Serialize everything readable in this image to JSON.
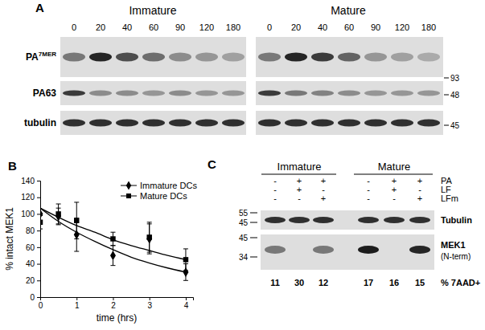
{
  "chart_data": {
    "type": "line",
    "xlabel": "time (hrs)",
    "ylabel": "% intact MEK1",
    "x": [
      0,
      0.5,
      1,
      2,
      3,
      4
    ],
    "xlim": [
      0,
      4.2
    ],
    "xticks": [
      0,
      1,
      2,
      3,
      4
    ],
    "ylim": [
      0,
      140
    ],
    "yticks": [
      0,
      20,
      40,
      60,
      80,
      100,
      120,
      140
    ],
    "legend": "top-right",
    "fit_x": [
      0,
      0.5,
      1,
      1.5,
      2,
      2.5,
      3,
      3.5,
      4
    ],
    "series": [
      {
        "name": "Immature DCs",
        "color": "#000000",
        "marker": "diamond",
        "line_style": "solid",
        "values": [
          100,
          97,
          75,
          50,
          70,
          30
        ],
        "errors": [
          0,
          10,
          20,
          12,
          18,
          10
        ],
        "fit": [
          107,
          91,
          78,
          67,
          57,
          48,
          41,
          35,
          30
        ]
      },
      {
        "name": "Mature DCs",
        "color": "#000000",
        "marker": "square",
        "line_style": "solid",
        "values": [
          90,
          100,
          92,
          70,
          72,
          45
        ],
        "errors": [
          8,
          12,
          22,
          8,
          18,
          13
        ],
        "fit": [
          107,
          96,
          86,
          78,
          69,
          62,
          56,
          50,
          45
        ]
      }
    ]
  },
  "panel_b": {
    "label": "B"
  },
  "panel_a": {
    "label": "A",
    "groups": [
      "Immature",
      "Mature"
    ],
    "lanes": [
      0,
      20,
      40,
      60,
      90,
      120,
      180
    ],
    "rows": [
      {
        "label": "PA",
        "sup": "7MER",
        "immature": [
          0.5,
          0.9,
          0.7,
          0.55,
          0.4,
          0.35,
          0.3
        ],
        "mature": [
          0.5,
          0.9,
          0.8,
          0.6,
          0.35,
          0.3,
          0.25
        ]
      },
      {
        "label": "PA63",
        "immature": [
          0.8,
          0.4,
          0.4,
          0.35,
          0.4,
          0.35,
          0.35
        ],
        "mature": [
          0.8,
          0.5,
          0.45,
          0.4,
          0.35,
          0.35,
          0.35
        ]
      },
      {
        "label": "tubulin",
        "immature": [
          0.85,
          0.85,
          0.85,
          0.85,
          0.85,
          0.85,
          0.85
        ],
        "mature": [
          0.85,
          0.85,
          0.85,
          0.85,
          0.85,
          0.85,
          0.85
        ]
      }
    ],
    "mw_markers": [
      93,
      48,
      45
    ]
  },
  "panel_c": {
    "label": "C",
    "groups": [
      "Immature",
      "Mature"
    ],
    "treatments": [
      {
        "label": "PA",
        "signs": [
          "-",
          "+",
          "+",
          "-",
          "+",
          "+"
        ]
      },
      {
        "label": "LF",
        "signs": [
          "-",
          "+",
          "-",
          "-",
          "+",
          "-"
        ]
      },
      {
        "label": "LFm",
        "signs": [
          "-",
          "-",
          "+",
          "-",
          "-",
          "+"
        ]
      }
    ],
    "blots": [
      {
        "label": "Tubulin",
        "markers": [
          55,
          45
        ],
        "intensity": [
          0.85,
          0.85,
          0.85,
          0.85,
          0.85,
          0.85
        ]
      },
      {
        "label": "MEK1",
        "sublabel": "(N-term)",
        "markers": [
          45,
          34
        ],
        "intensity": [
          0.5,
          0,
          0.5,
          0.95,
          0,
          0.9
        ]
      }
    ],
    "percent_label": "% 7AAD+",
    "percent_values": [
      11,
      30,
      12,
      17,
      16,
      15
    ]
  }
}
